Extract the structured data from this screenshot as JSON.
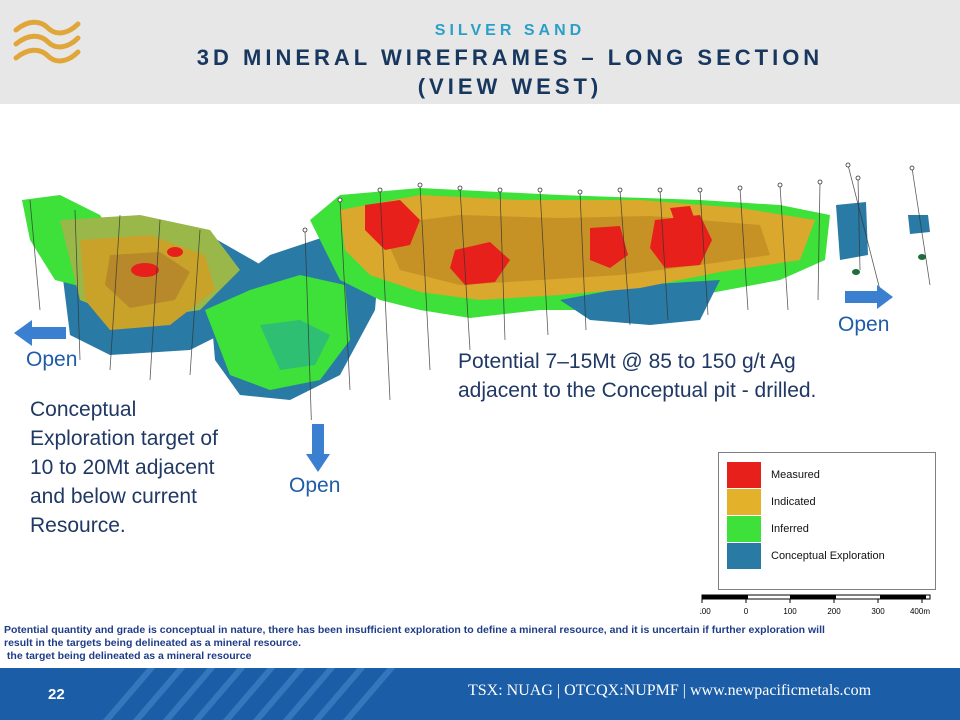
{
  "header": {
    "logo": "wave-logo",
    "subtitle": "SILVER SAND",
    "title_line1": "3D MINERAL WIREFRAMES – LONG SECTION",
    "title_line2": "(VIEW WEST)"
  },
  "labels": {
    "open_left": "Open",
    "open_bottom": "Open",
    "open_right": "Open"
  },
  "annotations": {
    "potential_line1": "Potential 7–15Mt @ 85 to 150 g/t Ag",
    "potential_line2": "adjacent to the Conceptual pit  - drilled.",
    "conceptual_lines": [
      "Conceptual",
      "Exploration target of",
      "10 to 20Mt adjacent",
      "and below current",
      "Resource."
    ]
  },
  "legend": {
    "items": [
      {
        "label": "Measured",
        "color": "#e8201c"
      },
      {
        "label": "Indicated",
        "color": "#e3b12a"
      },
      {
        "label": "Inferred",
        "color": "#3ee03a"
      },
      {
        "label": "Conceptual Exploration",
        "color": "#2a7aa6"
      }
    ]
  },
  "scale_bar": {
    "ticks": [
      "100",
      "0",
      "100",
      "200",
      "300",
      "400m"
    ]
  },
  "disclaimer": {
    "line1": "Potential quantity and grade is conceptual in nature, there has been insufficient exploration to define a mineral resource, and it is uncertain if further exploration will",
    "line2": "result in the targets being delineated as a mineral resource.",
    "line3": " the target being delineated as a mineral resource"
  },
  "footer": {
    "page_number": "22",
    "ticker_text": "TSX: NUAG | OTCQX:NUPMF | www.newpacificmetals.com"
  },
  "colors": {
    "arrow": "#3a7fd0",
    "footer_bg": "#1b5da6",
    "title": "#17375e"
  }
}
